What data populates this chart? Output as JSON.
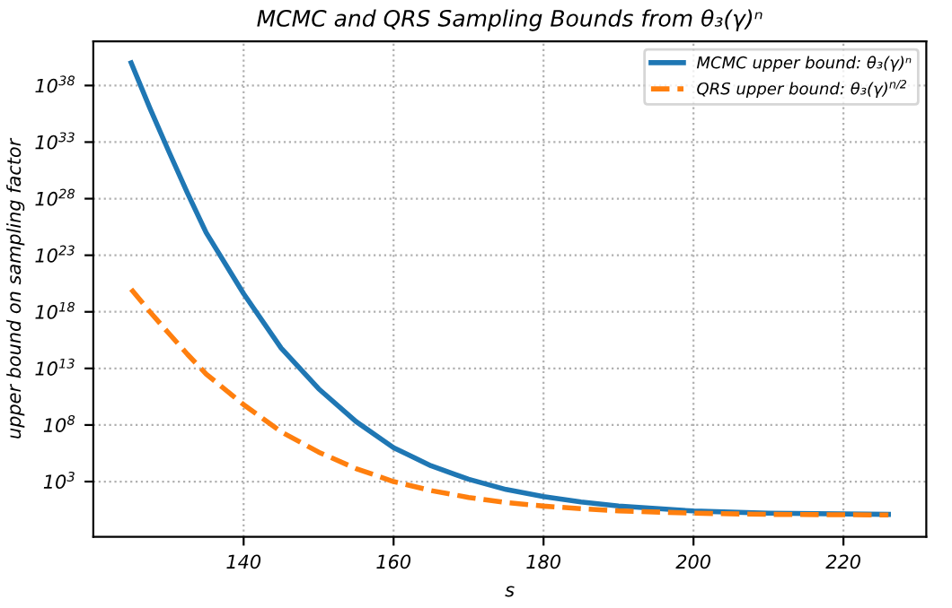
{
  "chart_data": {
    "type": "line",
    "title": "MCMC and QRS Sampling Bounds from θ₃(γ)ⁿ",
    "xlabel": "s",
    "ylabel": "upper bound on sampling factor",
    "x": [
      125,
      127.5,
      130,
      132.5,
      135,
      140,
      145,
      150,
      155,
      160,
      165,
      170,
      175,
      180,
      185,
      190,
      200,
      210,
      226
    ],
    "series": [
      {
        "name": "MCMC upper bound: θ₃(γ)ⁿ",
        "color": "#1f77b4",
        "line_style": "solid",
        "values": [
          1e+40,
          1e+36,
          1.6e+32,
          3.2e+28,
          1e+25,
          4e+19,
          630000000000000.0,
          160000000000.0,
          200000000.0,
          1000000.0,
          25000.0,
          1600,
          200,
          47,
          16,
          7,
          2.5,
          1.6,
          1.26
        ]
      },
      {
        "name": "QRS upper bound: θ₃(γ)$^{n/2}$",
        "color": "#ff7f0e",
        "line_style": "dashed",
        "values": [
          1e+20,
          1e+18,
          1.3e+16,
          180000000000000.0,
          3200000000000.0,
          6300000000.0,
          25000000.0,
          400000.0,
          14000.0,
          1000,
          160,
          40,
          14,
          6.8,
          4,
          2.6,
          1.6,
          1.26,
          1.12
        ]
      }
    ],
    "log": "y",
    "xlim": [
      119.95,
      231.05
    ],
    "ylim": [
      0.013,
      8e+41
    ],
    "xticks": [
      140,
      160,
      180,
      200,
      220
    ],
    "yticks": [
      {
        "value": 1000.0,
        "label": "10$^{3}$"
      },
      {
        "value": 100000000.0,
        "label": "10$^{8}$"
      },
      {
        "value": 10000000000000.0,
        "label": "10$^{13}$"
      },
      {
        "value": 1e+18,
        "label": "10$^{18}$"
      },
      {
        "value": 1e+23,
        "label": "10$^{23}$"
      },
      {
        "value": 1e+28,
        "label": "10$^{28}$"
      },
      {
        "value": 1e+33,
        "label": "10$^{33}$"
      },
      {
        "value": 1e+38,
        "label": "10$^{38}$"
      }
    ],
    "grid": true,
    "legend": "top right"
  }
}
